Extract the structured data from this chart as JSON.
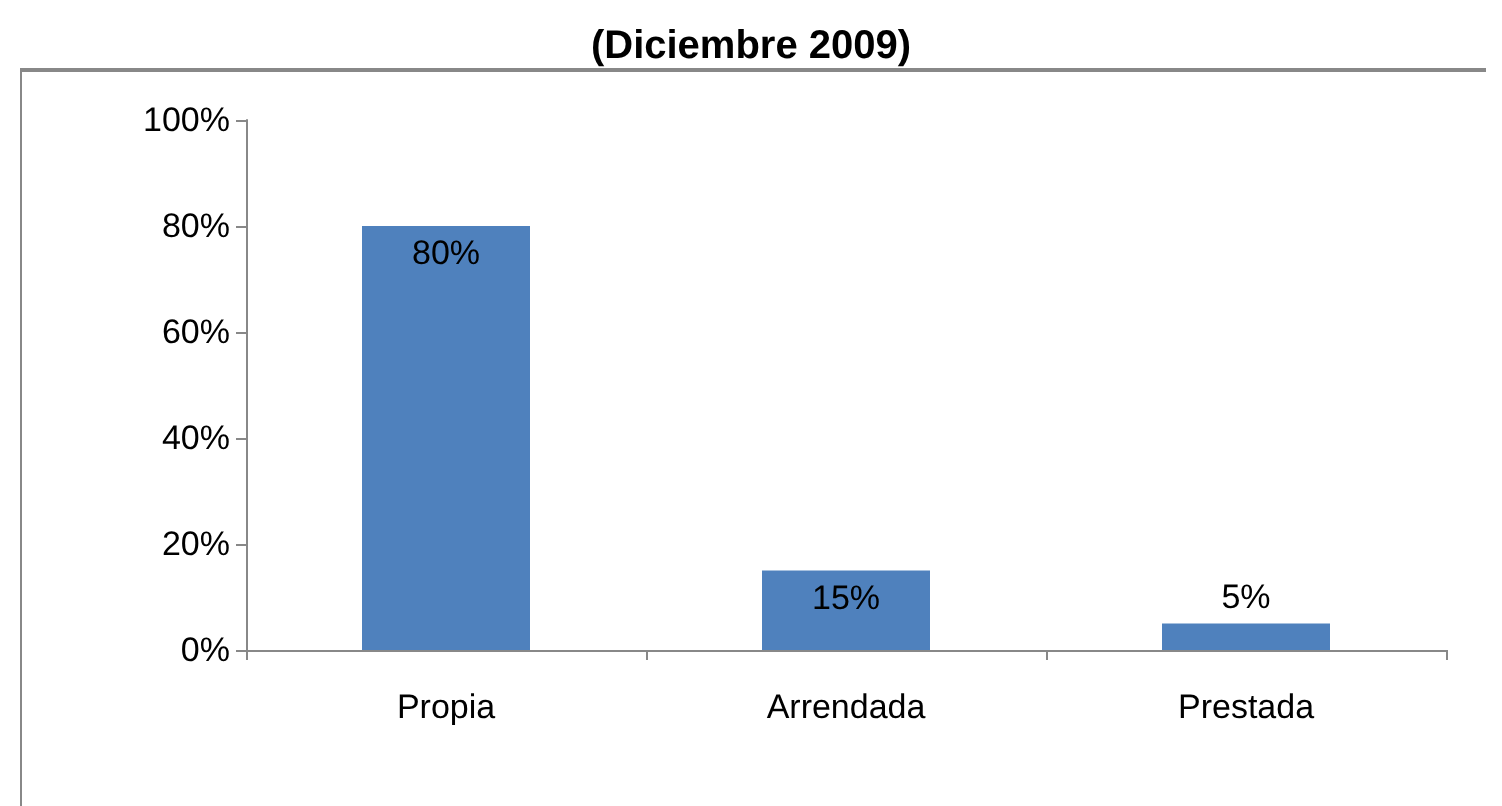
{
  "chart_data": {
    "type": "bar",
    "title": "(Diciembre 2009)",
    "categories": [
      "Propia",
      "Arrendada",
      "Prestada"
    ],
    "values": [
      80,
      15,
      5
    ],
    "color": "#4f81bd",
    "value_labels": [
      "80%",
      "15%",
      "5%"
    ],
    "ylim": [
      0,
      100
    ],
    "yticks": [
      {
        "value": 0,
        "label": "0%"
      },
      {
        "value": 20,
        "label": "20%"
      },
      {
        "value": 40,
        "label": "40%"
      },
      {
        "value": 60,
        "label": "60%"
      },
      {
        "value": 80,
        "label": "80%"
      },
      {
        "value": 100,
        "label": "100%"
      }
    ],
    "grid": false
  }
}
